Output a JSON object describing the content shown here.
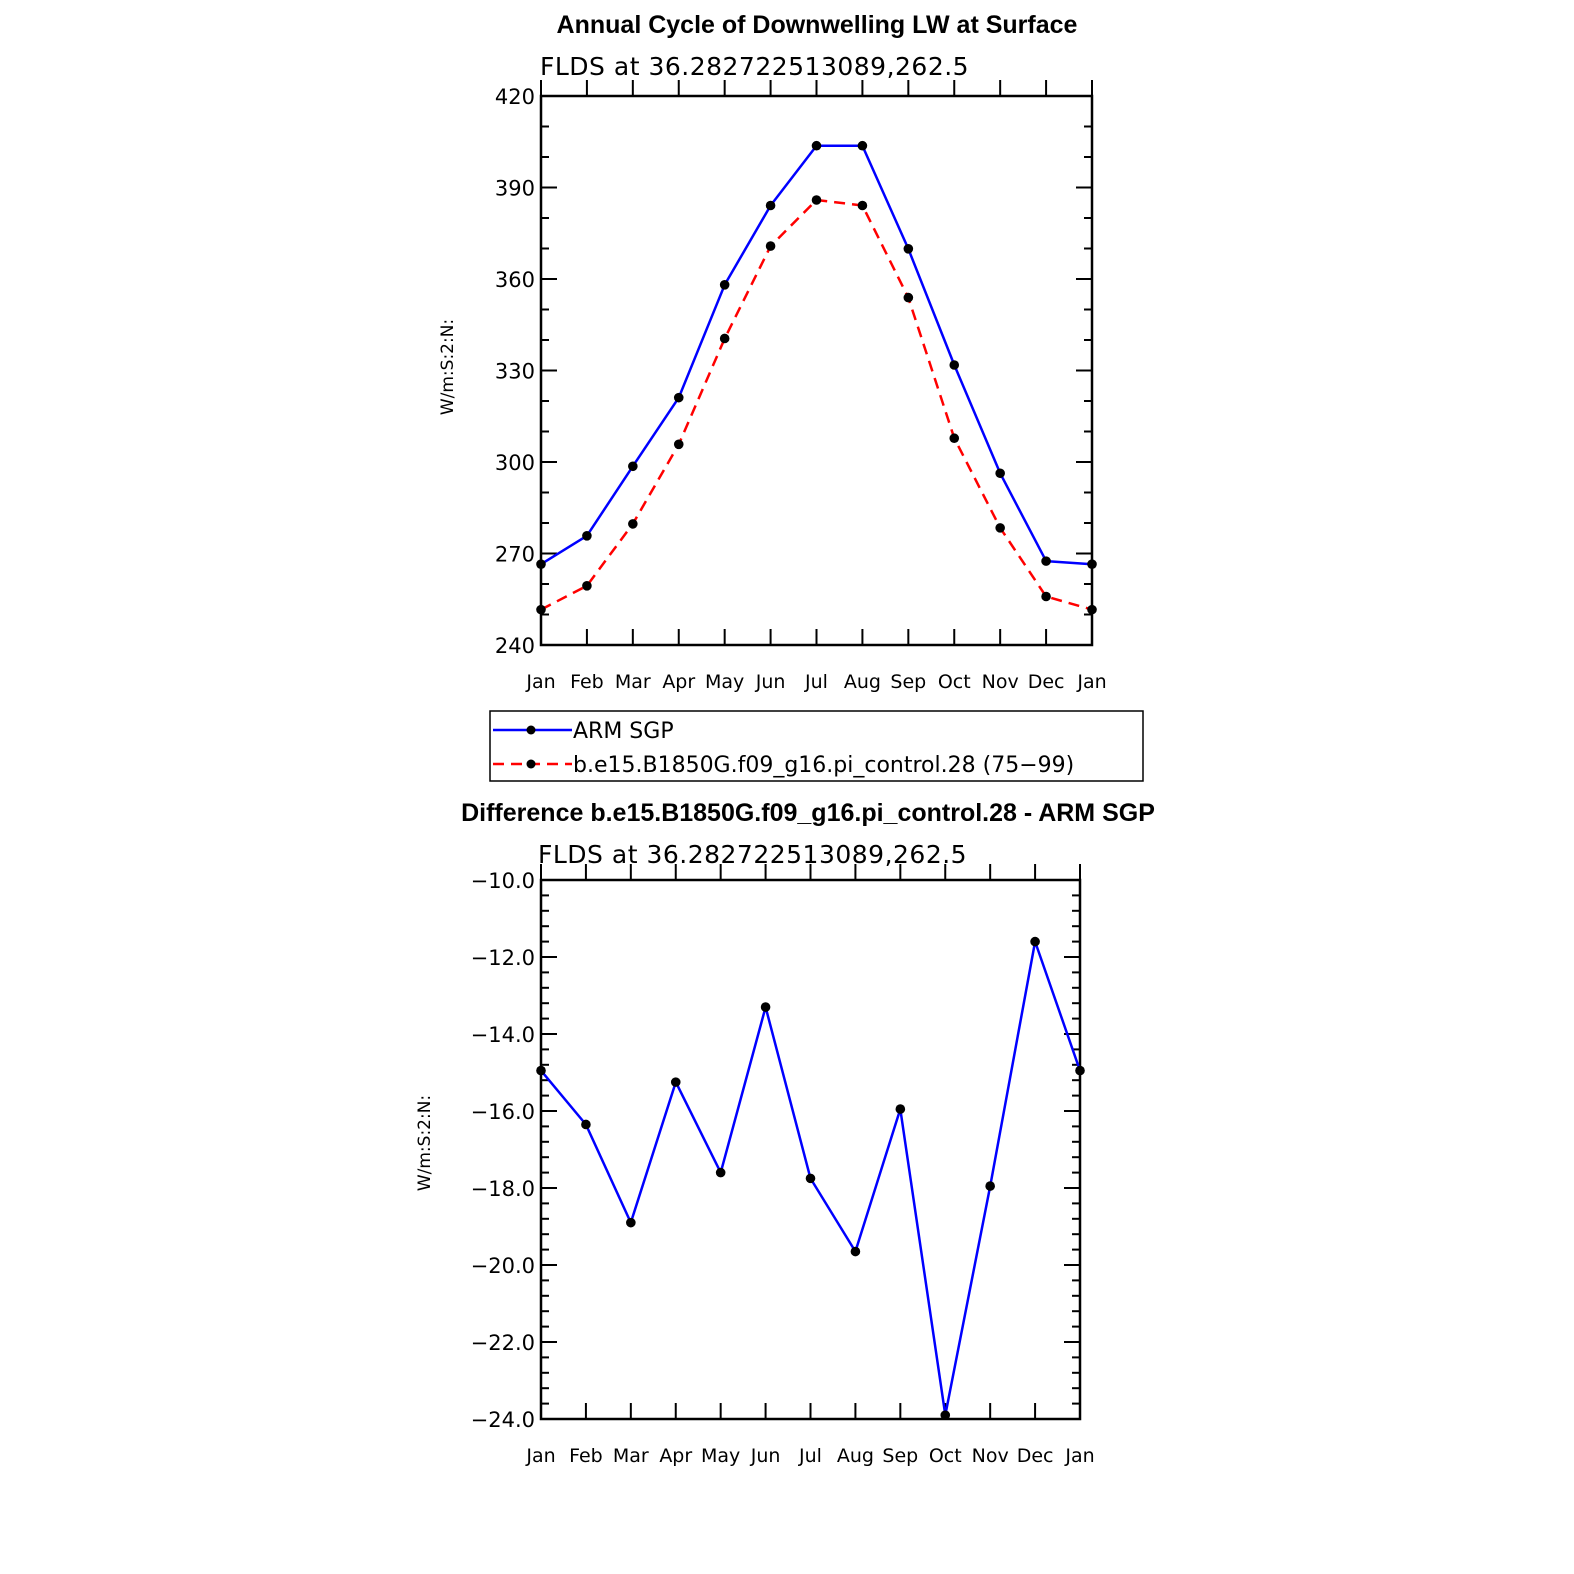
{
  "chart_data": [
    {
      "type": "line",
      "title": "Annual Cycle of Downwelling LW at Surface",
      "subtitle": "FLDS at 36.282722513089,262.5",
      "ylabel": "W/m:S:2:N:",
      "xlabel": "",
      "ylim": [
        240,
        420
      ],
      "yticks": [
        "240",
        "270",
        "300",
        "330",
        "360",
        "390",
        "420"
      ],
      "yminor_step": 10,
      "categories": [
        "Jan",
        "Feb",
        "Mar",
        "Apr",
        "May",
        "Jun",
        "Jul",
        "Aug",
        "Sep",
        "Oct",
        "Nov",
        "Dec",
        "Jan"
      ],
      "series": [
        {
          "name": "ARM SGP",
          "color": "#0000ff",
          "dash": "solid",
          "values": [
            266.5,
            275.8,
            298.6,
            321.1,
            358.1,
            384.1,
            403.7,
            403.7,
            369.9,
            331.8,
            296.3,
            267.5,
            266.5
          ]
        },
        {
          "name": "b.e15.B1850G.f09_g16.pi_control.28 (75−99)",
          "color": "#ff0000",
          "dash": "dashed",
          "values": [
            251.6,
            259.4,
            279.7,
            305.8,
            340.5,
            370.8,
            385.9,
            384.1,
            353.9,
            307.8,
            278.4,
            255.9,
            251.6
          ]
        }
      ],
      "legend": "below"
    },
    {
      "type": "line",
      "title": "Difference b.e15.B1850G.f09_g16.pi_control.28 - ARM SGP",
      "subtitle": "FLDS at 36.282722513089,262.5",
      "ylabel": "W/m:S:2:N:",
      "xlabel": "",
      "ylim": [
        -24.0,
        -10.0
      ],
      "yticks": [
        "−24.0",
        "−22.0",
        "−20.0",
        "−18.0",
        "−16.0",
        "−14.0",
        "−12.0",
        "−10.0"
      ],
      "yminor_step": 0.4,
      "categories": [
        "Jan",
        "Feb",
        "Mar",
        "Apr",
        "May",
        "Jun",
        "Jul",
        "Aug",
        "Sep",
        "Oct",
        "Nov",
        "Dec",
        "Jan"
      ],
      "series": [
        {
          "name": "",
          "color": "#0000ff",
          "dash": "solid",
          "values": [
            -14.95,
            -16.35,
            -18.9,
            -15.25,
            -17.6,
            -13.3,
            -17.75,
            -19.65,
            -15.95,
            -23.9,
            -17.95,
            -11.6,
            -14.95
          ]
        }
      ]
    }
  ]
}
